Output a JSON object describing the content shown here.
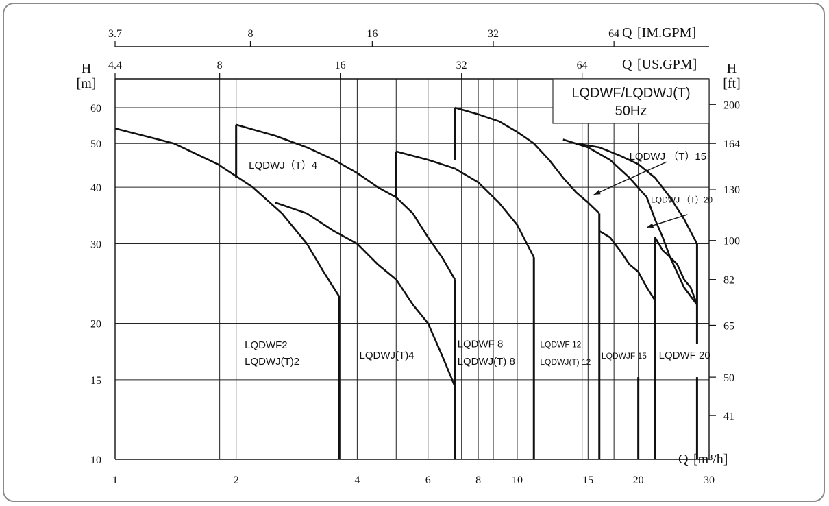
{
  "chart_data": {
    "type": "line",
    "title": "LQDWF/LQDWJ(T)",
    "subtitle": "50Hz",
    "x_scale": "log",
    "y_scale": "log",
    "xlim": [
      1,
      30
    ],
    "ylim": [
      10,
      60
    ],
    "xlabel": "Q",
    "xunit": "[m³/h]",
    "ylabel_left": "H",
    "yunit_left": "[m]",
    "ylabel_right": "H",
    "yunit_right": "[ft]",
    "top_axis_im_label": "Q",
    "top_axis_im_unit": "[IM.GPM]",
    "top_axis_us_label": "Q",
    "top_axis_us_unit": "[US.GPM]",
    "x_ticks": [
      1,
      2,
      4,
      6,
      8,
      10,
      15,
      20,
      30
    ],
    "y_ticks_m": [
      10,
      15,
      20,
      30,
      40,
      50,
      60
    ],
    "y_ticks_ft": [
      {
        "label": "200",
        "m": 61.0
      },
      {
        "label": "164",
        "m": 50.0
      },
      {
        "label": "130",
        "m": 39.6
      },
      {
        "label": "100",
        "m": 30.5
      },
      {
        "label": "82",
        "m": 25.0
      },
      {
        "label": "65",
        "m": 19.8
      },
      {
        "label": "50",
        "m": 15.2
      },
      {
        "label": "41",
        "m": 12.5
      }
    ],
    "us_gpm_ticks": [
      {
        "label": "4.4",
        "q": 1.0
      },
      {
        "label": "8",
        "q": 1.82
      },
      {
        "label": "16",
        "q": 3.63
      },
      {
        "label": "32",
        "q": 7.27
      },
      {
        "label": "64",
        "q": 14.5
      }
    ],
    "im_gpm_ticks": [
      {
        "label": "3.7",
        "q": 1.0
      },
      {
        "label": "8",
        "q": 2.17
      },
      {
        "label": "16",
        "q": 4.36
      },
      {
        "label": "32",
        "q": 8.72
      },
      {
        "label": "64",
        "q": 17.4
      }
    ],
    "extra_vlines_q": [
      1.82,
      3.63,
      5.0,
      7.27,
      8.72,
      14.5,
      17.4
    ],
    "curves": [
      {
        "name": "LQDWJ(T)4 (wide)",
        "points": [
          [
            1,
            54
          ],
          [
            1.4,
            50
          ],
          [
            1.8,
            45
          ],
          [
            2.2,
            40
          ],
          [
            2.6,
            35
          ],
          [
            3,
            30
          ],
          [
            3.3,
            26
          ],
          [
            3.6,
            23
          ]
        ]
      },
      {
        "name": "LQDWJ(T)4",
        "points": [
          [
            2,
            55
          ],
          [
            2.5,
            52
          ],
          [
            3,
            49
          ],
          [
            3.5,
            46
          ],
          [
            4,
            43
          ],
          [
            4.5,
            40
          ],
          [
            5,
            38
          ],
          [
            5.5,
            35
          ],
          [
            6,
            31
          ],
          [
            6.5,
            28
          ],
          [
            7,
            25
          ]
        ]
      },
      {
        "name": "LQDWJ(T)2 lower",
        "points": [
          [
            2.5,
            37
          ],
          [
            3,
            35
          ],
          [
            3.5,
            32
          ],
          [
            4,
            30
          ],
          [
            4.5,
            27
          ],
          [
            5,
            25
          ],
          [
            5.5,
            22
          ],
          [
            6,
            20
          ],
          [
            6.5,
            17
          ],
          [
            7,
            14.5
          ]
        ]
      },
      {
        "name": "LQDWJ(T)8",
        "points": [
          [
            5,
            48
          ],
          [
            6,
            46
          ],
          [
            7,
            44
          ],
          [
            8,
            41
          ],
          [
            9,
            37
          ],
          [
            10,
            33
          ],
          [
            11,
            28
          ]
        ]
      },
      {
        "name": "LQDWJ(T)12",
        "points": [
          [
            7,
            60
          ],
          [
            8,
            58
          ],
          [
            9,
            56
          ],
          [
            10,
            53
          ],
          [
            11,
            50
          ],
          [
            12,
            46
          ],
          [
            13,
            42
          ],
          [
            14,
            39
          ],
          [
            15,
            37
          ],
          [
            16,
            35
          ]
        ]
      },
      {
        "name": "LQDWJ(T)15",
        "points": [
          [
            13,
            51
          ],
          [
            15,
            49
          ],
          [
            17,
            46
          ],
          [
            19,
            42
          ],
          [
            21,
            38
          ],
          [
            22,
            34
          ],
          [
            23,
            31
          ],
          [
            24,
            28
          ],
          [
            26,
            24
          ],
          [
            28,
            22
          ]
        ]
      },
      {
        "name": "LQDWJ(T)20",
        "points": [
          [
            14,
            50
          ],
          [
            16,
            49
          ],
          [
            18,
            47
          ],
          [
            20,
            45
          ],
          [
            22,
            42
          ],
          [
            24,
            38
          ],
          [
            26,
            34
          ],
          [
            28,
            30
          ]
        ]
      },
      {
        "name": "LQDWF15 lower",
        "points": [
          [
            16,
            32
          ],
          [
            17,
            31
          ],
          [
            18,
            29
          ],
          [
            19,
            27
          ],
          [
            20,
            26
          ],
          [
            21,
            24
          ],
          [
            22,
            22.5
          ]
        ]
      },
      {
        "name": "LQDWF20 lower",
        "points": [
          [
            22,
            31
          ],
          [
            23,
            29
          ],
          [
            24,
            28
          ],
          [
            25,
            27
          ],
          [
            26,
            25
          ],
          [
            27,
            24
          ],
          [
            28,
            22
          ]
        ]
      }
    ],
    "verticals": [
      {
        "q": 2,
        "h_top": 55,
        "h_bottom": 42
      },
      {
        "q": 5,
        "h_top": 48,
        "h_bottom": 38
      },
      {
        "q": 7,
        "h_top": 60,
        "h_bottom": 46
      },
      {
        "q": 3.6,
        "h_top": 23,
        "h_bottom": 10
      },
      {
        "q": 7,
        "h_top": 25,
        "h_bottom": 10
      },
      {
        "q": 11,
        "h_top": 28,
        "h_bottom": 10
      },
      {
        "q": 16,
        "h_top": 35,
        "h_bottom": 10
      },
      {
        "q": 20,
        "h_top": 15.2,
        "h_bottom": 10
      },
      {
        "q": 22,
        "h_top": 31,
        "h_bottom": 10
      },
      {
        "q": 28,
        "h_top": 30,
        "h_bottom": 18
      },
      {
        "q": 28,
        "h_top": 15.2,
        "h_bottom": 10
      }
    ],
    "labels": [
      {
        "text": "LQDWJ（T）4",
        "q": 2.15,
        "h": 44
      },
      {
        "text": "LQDWF2",
        "q": 2.1,
        "h": 17.6
      },
      {
        "text": "LQDWJ(T)2",
        "q": 2.1,
        "h": 16.2
      },
      {
        "text": "LQDWJ(T)4",
        "q": 4.05,
        "h": 16.7
      },
      {
        "text": "LQDWF 8",
        "q": 7.1,
        "h": 17.7
      },
      {
        "text": "LQDWJ(T) 8",
        "q": 7.1,
        "h": 16.2
      },
      {
        "text": "LQDWF 12",
        "q": 11.4,
        "h": 17.7,
        "small": true
      },
      {
        "text": "LQDWJ(T) 12",
        "q": 11.4,
        "h": 16.2,
        "small": true
      },
      {
        "text": "LQDWJF 15",
        "q": 16.2,
        "h": 16.7,
        "small": true
      },
      {
        "text": "LQDWF 20",
        "q": 22.5,
        "h": 16.7
      },
      {
        "text": "LQDWJ （T）15",
        "q": 19.0,
        "h": 46.0
      },
      {
        "text": "LQDWJ （T）20",
        "q": 21.5,
        "h": 37.0,
        "small": true
      }
    ],
    "arrows": [
      {
        "from": [
          23.5,
          45.5
        ],
        "to": [
          15.5,
          38.5
        ]
      },
      {
        "from": [
          26.5,
          34.8
        ],
        "to": [
          21.0,
          32.6
        ]
      }
    ]
  }
}
